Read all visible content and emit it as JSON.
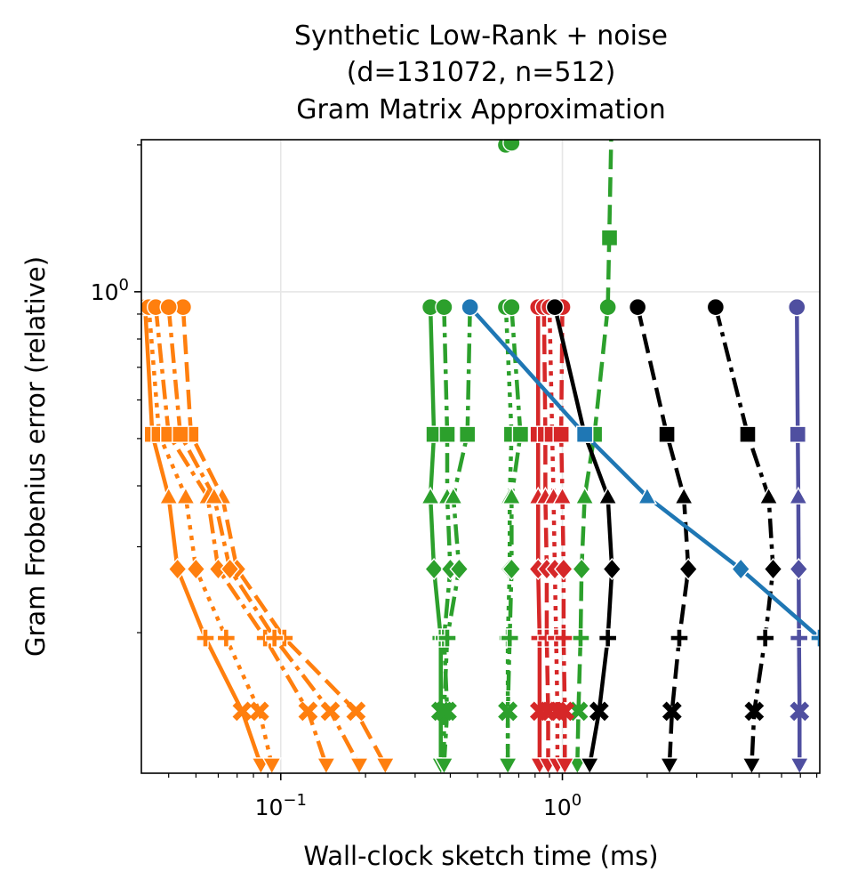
{
  "chart_data": {
    "type": "line",
    "title_lines": [
      "Synthetic Low-Rank + noise",
      "(d=131072, n=512)",
      "Gram Matrix Approximation"
    ],
    "xlabel": "Wall-clock sketch time (ms)",
    "ylabel": "Gram Frobenius error (relative)",
    "x_scale": "log",
    "y_scale": "log",
    "xlim": [
      0.032,
      8.2
    ],
    "ylim": [
      0.103,
      2.05
    ],
    "x_ticks": [
      {
        "value": 0.1,
        "base": "10",
        "exp": "−1"
      },
      {
        "value": 1,
        "base": "10",
        "exp": "0"
      }
    ],
    "y_ticks": [
      {
        "value": 1,
        "base": "10",
        "exp": "0"
      }
    ],
    "grid": true,
    "colors": {
      "orange": "#ff7f0e",
      "green": "#2ca02c",
      "red": "#d62728",
      "black": "#000000",
      "blue": "#1f77b4",
      "purple": "#4f4fa0"
    },
    "marker_levels_y": [
      0.93,
      0.51,
      0.38,
      0.27,
      0.195,
      0.138,
      0.107
    ],
    "marker_order": [
      "circle",
      "square",
      "triangle",
      "diamond",
      "plus",
      "x",
      "triangle-down"
    ],
    "series": [
      {
        "color": "orange",
        "style": "solid",
        "x": [
          0.033,
          0.035,
          0.04,
          0.043,
          0.054,
          0.073,
          0.085
        ]
      },
      {
        "color": "orange",
        "style": "dotted",
        "x": [
          0.034,
          0.037,
          0.046,
          0.05,
          0.064,
          0.084,
          0.093
        ]
      },
      {
        "color": "orange",
        "style": "dashdot",
        "x": [
          0.036,
          0.04,
          0.055,
          0.06,
          0.088,
          0.125,
          0.145
        ]
      },
      {
        "color": "orange",
        "style": "dashed",
        "x": [
          0.045,
          0.048,
          0.062,
          0.07,
          0.103,
          0.185,
          0.235
        ]
      },
      {
        "color": "orange",
        "style": "dashdot",
        "x": [
          0.04,
          0.044,
          0.058,
          0.066,
          0.095,
          0.15,
          0.19
        ]
      },
      {
        "color": "green",
        "style": "solid",
        "x": [
          0.34,
          0.35,
          0.34,
          0.35,
          0.37,
          0.37,
          0.37
        ]
      },
      {
        "color": "green",
        "style": "dashdot",
        "x": [
          0.38,
          0.39,
          0.39,
          0.4,
          0.38,
          0.39,
          0.38
        ]
      },
      {
        "color": "green",
        "style": "dashdot",
        "x": [
          0.47,
          0.46,
          0.41,
          0.43,
          0.39,
          0.38,
          0.38
        ]
      },
      {
        "color": "green",
        "style": "dotted",
        "x": [
          0.63,
          0.66,
          0.65,
          0.65,
          0.64,
          0.64,
          0.64
        ]
      },
      {
        "color": "green",
        "style": "dashdot",
        "x": [
          0.66,
          0.71,
          0.66,
          0.66,
          0.65,
          0.64,
          0.64
        ]
      },
      {
        "color": "green",
        "style": "dashed",
        "x": [
          1.45,
          1.3,
          1.2,
          1.17,
          1.16,
          1.14,
          1.13
        ]
      },
      {
        "color": "red",
        "style": "solid",
        "x": [
          0.82,
          0.82,
          0.82,
          0.82,
          0.83,
          0.83,
          0.83
        ]
      },
      {
        "color": "red",
        "style": "dashed",
        "x": [
          0.86,
          0.87,
          0.87,
          0.88,
          0.88,
          0.89,
          0.89
        ]
      },
      {
        "color": "red",
        "style": "dotted",
        "x": [
          0.9,
          0.92,
          0.93,
          0.94,
          0.95,
          0.96,
          0.96
        ]
      },
      {
        "color": "red",
        "style": "dashdot",
        "x": [
          1.0,
          0.99,
          1.0,
          1.01,
          1.01,
          1.02,
          1.02
        ]
      },
      {
        "color": "black",
        "style": "solid",
        "x": [
          0.94,
          1.2,
          1.45,
          1.5,
          1.45,
          1.35,
          1.25
        ]
      },
      {
        "color": "black",
        "style": "dashed",
        "x": [
          1.85,
          2.35,
          2.7,
          2.8,
          2.6,
          2.45,
          2.4
        ]
      },
      {
        "color": "black",
        "style": "dashdot",
        "x": [
          3.5,
          4.55,
          5.4,
          5.6,
          5.25,
          4.8,
          4.7
        ]
      },
      {
        "color": "purple",
        "style": "solid",
        "x": [
          6.8,
          6.85,
          6.88,
          6.9,
          6.92,
          6.95,
          6.95
        ]
      },
      {
        "color": "blue",
        "style": "solid",
        "x": [
          0.47,
          1.2,
          2.0,
          4.3,
          8.2
        ]
      }
    ],
    "extra_points": [
      {
        "color": "green",
        "x": 0.63,
        "y": 2.0,
        "marker": "circle"
      },
      {
        "color": "green",
        "x": 0.66,
        "y": 2.02,
        "marker": "circle"
      },
      {
        "color": "green",
        "x": 1.47,
        "y": 1.29,
        "marker": "square"
      }
    ]
  }
}
